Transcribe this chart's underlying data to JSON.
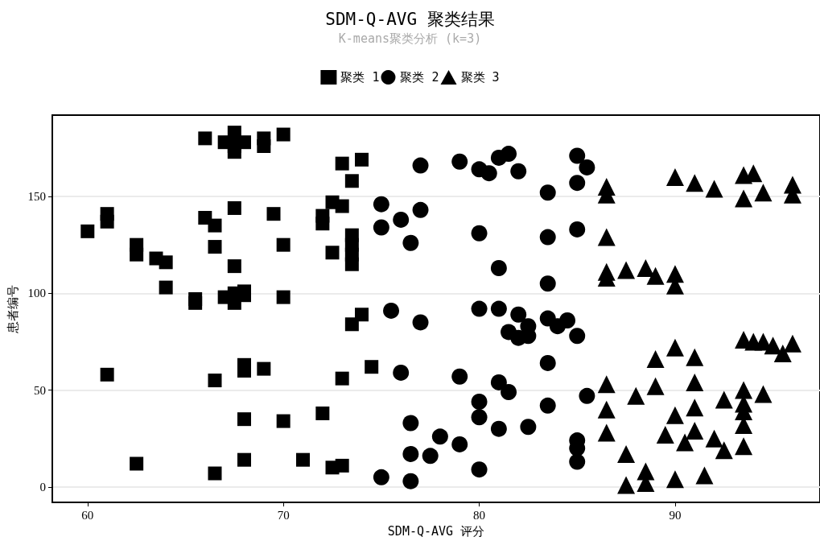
{
  "chart_data": {
    "type": "scatter",
    "title": "SDM-Q-AVG 聚类结果",
    "subtitle": "K-means聚类分析 (k=3)",
    "xlabel": "SDM-Q-AVG 评分",
    "ylabel": "患者编号",
    "xlim": [
      58.2,
      97.4
    ],
    "xticks": [
      60,
      70,
      80,
      90
    ],
    "ylim": [
      -8,
      192
    ],
    "yticks": [
      0,
      50,
      100,
      150
    ],
    "grid": "y",
    "legend": "top",
    "series": [
      {
        "name": "聚类 1",
        "color": "#000000",
        "marker": "square",
        "x": [
          60,
          61,
          61,
          62.5,
          62.5,
          63.5,
          64,
          64,
          65.5,
          65.5,
          66,
          66,
          66.5,
          66.5,
          66.5,
          66.5,
          62.5,
          61,
          67,
          67.5,
          67.5,
          68,
          67.5,
          69,
          69,
          70,
          67.5,
          67.5,
          67,
          67.5,
          68,
          67.5,
          68,
          69.5,
          70,
          70,
          68,
          68,
          69,
          68,
          68,
          70,
          71,
          72,
          72.5,
          73,
          72,
          72,
          72.5,
          73,
          73.5,
          73.5,
          73.5,
          73.5,
          73.5,
          74,
          73.5,
          74,
          73,
          74.5,
          72.5,
          73
        ],
        "values": [
          132,
          141,
          137,
          125,
          120,
          118,
          116,
          103,
          97,
          95,
          180,
          139,
          135,
          124,
          55,
          7,
          12,
          58,
          178,
          183,
          173,
          178,
          176,
          180,
          176,
          182,
          144,
          114,
          98,
          95,
          101,
          100,
          99,
          141,
          125,
          98,
          63,
          60,
          61,
          35,
          14,
          34,
          14,
          38,
          147,
          145,
          140,
          136,
          121,
          167,
          158,
          130,
          125,
          120,
          115,
          169,
          84,
          89,
          56,
          62,
          10,
          11
        ]
      },
      {
        "name": "聚类 2",
        "color": "#000000",
        "marker": "circle",
        "x": [
          75,
          75,
          76,
          76.5,
          77,
          77,
          75.5,
          77,
          76,
          76.5,
          76.5,
          77.5,
          78,
          79,
          79,
          79,
          75,
          76.5,
          80,
          80.5,
          81,
          81.5,
          82,
          83.5,
          85,
          85.5,
          85,
          80,
          81,
          83.5,
          85,
          83.5,
          80,
          81,
          82,
          81.5,
          82,
          82.5,
          82.5,
          83.5,
          84,
          84.5,
          85,
          83.5,
          81,
          81.5,
          85.5,
          80,
          80,
          81,
          82.5,
          83.5,
          80,
          85,
          85,
          85
        ],
        "values": [
          146,
          134,
          138,
          126,
          143,
          166,
          91,
          85,
          59,
          33,
          17,
          16,
          26,
          22,
          57,
          168,
          5,
          3,
          164,
          162,
          170,
          172,
          163,
          152,
          171,
          165,
          157,
          131,
          113,
          129,
          133,
          105,
          92,
          92,
          89,
          80,
          77,
          83,
          78,
          87,
          83,
          86,
          78,
          64,
          54,
          49,
          47,
          44,
          36,
          30,
          31,
          42,
          9,
          24,
          20,
          13
        ]
      },
      {
        "name": "聚类 3",
        "color": "#000000",
        "marker": "triangle",
        "x": [
          86.5,
          86.5,
          90,
          91,
          92,
          93.5,
          94,
          93.5,
          94.5,
          96,
          96,
          86.5,
          86.5,
          86.5,
          87.5,
          88.5,
          89,
          90,
          90,
          93.5,
          94,
          94.5,
          95,
          95.5,
          96,
          90,
          89,
          91,
          91,
          89,
          86.5,
          88,
          93.5,
          94.5,
          92.5,
          93.5,
          93.5,
          91,
          90,
          86.5,
          93.5,
          91,
          89.5,
          92,
          90.5,
          92.5,
          93.5,
          86.5,
          87.5,
          88.5,
          88.5,
          87.5,
          90,
          91.5
        ],
        "values": [
          155,
          151,
          160,
          157,
          154,
          161,
          162,
          149,
          152,
          156,
          151,
          129,
          111,
          108,
          112,
          113,
          109,
          110,
          104,
          76,
          75,
          75,
          73,
          69,
          74,
          72,
          66,
          67,
          54,
          52,
          53,
          47,
          50,
          48,
          45,
          43,
          39,
          41,
          37,
          40,
          32,
          29,
          27,
          25,
          23,
          19,
          21,
          28,
          17,
          8,
          2,
          1,
          4,
          6
        ]
      }
    ]
  }
}
